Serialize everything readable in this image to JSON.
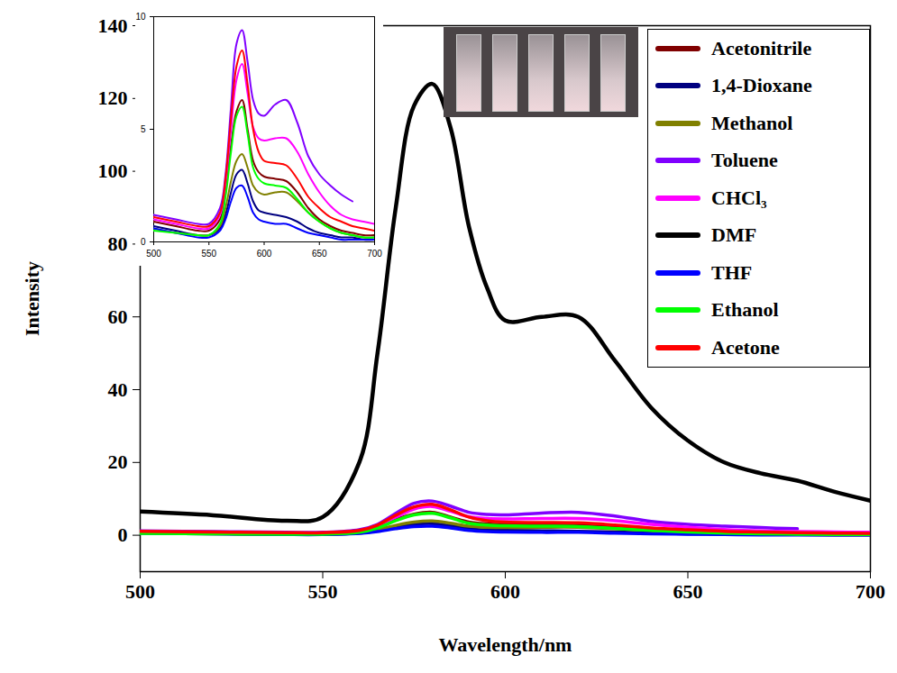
{
  "chart_data": [
    {
      "type": "line",
      "x_label": "Wavelength/nm",
      "y_label": "Intensity",
      "xlim": [
        500,
        700
      ],
      "xticks": [
        500,
        550,
        600,
        650,
        700
      ],
      "ylim": [
        -10,
        140
      ],
      "yticks": [
        0,
        20,
        40,
        60,
        80,
        100,
        120,
        140
      ],
      "grid": false,
      "legend": "top-right",
      "x": [
        500,
        520,
        540,
        550,
        560,
        565,
        570,
        575,
        580,
        585,
        590,
        595,
        600,
        610,
        620,
        630,
        640,
        650,
        660,
        670,
        680,
        690,
        700
      ],
      "series": [
        {
          "name": "Acetonitrile",
          "color": "#800000",
          "values": [
            0.9,
            0.7,
            0.5,
            0.5,
            1,
            2.2,
            4.3,
            5.8,
            6.3,
            5,
            3.6,
            3.1,
            2.9,
            2.8,
            2.7,
            2.2,
            1.5,
            1,
            0.7,
            0.5,
            0.4,
            0.3,
            0.3
          ]
        },
        {
          "name": "1,4-Dioxane",
          "color": "#000080",
          "values": [
            0.7,
            0.5,
            0.3,
            0.3,
            0.6,
            1.2,
            2.2,
            3,
            3.2,
            2.6,
            1.8,
            1.4,
            1.3,
            1.2,
            1.1,
            0.9,
            0.6,
            0.4,
            0.3,
            0.2,
            0.2,
            0.1,
            0.1
          ]
        },
        {
          "name": "Methanol",
          "color": "#808000",
          "values": [
            0.6,
            0.4,
            0.3,
            0.3,
            0.7,
            1.5,
            2.7,
            3.6,
            3.9,
            3.3,
            2.5,
            2.2,
            2.1,
            2.2,
            2.2,
            1.8,
            1.3,
            0.9,
            0.6,
            0.4,
            0.3,
            0.2,
            0.2
          ]
        },
        {
          "name": "Toluene",
          "color": "#8000ff",
          "values": [
            1.2,
            1,
            0.8,
            0.8,
            1.5,
            3,
            6,
            8.8,
            9.4,
            8,
            6.3,
            5.7,
            5.6,
            6.1,
            6.3,
            5.3,
            3.8,
            3,
            2.5,
            2.1,
            1.8,
            null,
            null
          ]
        },
        {
          "name": "CHCl₃",
          "color": "#ff00ff",
          "values": [
            1,
            0.8,
            0.6,
            0.6,
            1.2,
            2.6,
            5,
            7.2,
            7.9,
            6.6,
            5.1,
            4.6,
            4.5,
            4.6,
            4.6,
            4,
            3,
            2.2,
            1.6,
            1.2,
            1,
            0.9,
            0.8
          ]
        },
        {
          "name": "DMF",
          "color": "#000000",
          "values": [
            6.5,
            5.5,
            4,
            5,
            20,
            50,
            90,
            118,
            124,
            112,
            85,
            68,
            59,
            60,
            60,
            48,
            35,
            26,
            20,
            17,
            15,
            12,
            9.5
          ]
        },
        {
          "name": "THF",
          "color": "#0000ff",
          "values": [
            0.6,
            0.4,
            0.2,
            0.2,
            0.5,
            1,
            1.8,
            2.4,
            2.5,
            2,
            1.3,
            1,
            0.9,
            0.8,
            0.8,
            0.6,
            0.4,
            0.3,
            0.2,
            0.1,
            0.1,
            0.1,
            0.1
          ]
        },
        {
          "name": "Ethanol",
          "color": "#00ff00",
          "values": [
            0.5,
            0.4,
            0.3,
            0.3,
            0.8,
            2,
            4,
            5.6,
            6,
            4.8,
            3.3,
            2.8,
            2.6,
            2.5,
            2.4,
            1.9,
            1.3,
            0.9,
            0.6,
            0.4,
            0.3,
            0.2,
            0.2
          ]
        },
        {
          "name": "Acetone",
          "color": "#ff0000",
          "values": [
            1.1,
            0.9,
            0.7,
            0.7,
            1.3,
            2.8,
            5.5,
            7.8,
            8.5,
            7,
            5,
            4,
            3.6,
            3.5,
            3.4,
            2.8,
            2,
            1.5,
            1.1,
            0.9,
            0.7,
            0.6,
            0.5
          ]
        }
      ]
    },
    {
      "type": "line",
      "xlim": [
        500,
        700
      ],
      "xticks": [
        500,
        550,
        600,
        650,
        700
      ],
      "ylim": [
        0,
        10
      ],
      "yticks": [
        0,
        5,
        10
      ],
      "grid": false,
      "x": [
        500,
        520,
        540,
        550,
        560,
        565,
        570,
        575,
        580,
        585,
        590,
        595,
        600,
        610,
        620,
        630,
        640,
        650,
        660,
        670,
        680,
        690,
        700
      ],
      "series": [
        {
          "name": "Acetonitrile",
          "color": "#800000",
          "values": [
            0.9,
            0.7,
            0.5,
            0.5,
            1,
            2.2,
            4.3,
            5.8,
            6.3,
            5,
            3.6,
            3.1,
            2.9,
            2.8,
            2.7,
            2.2,
            1.5,
            1,
            0.7,
            0.5,
            0.4,
            0.3,
            0.3
          ]
        },
        {
          "name": "1,4-Dioxane",
          "color": "#000080",
          "values": [
            0.7,
            0.5,
            0.3,
            0.3,
            0.6,
            1.2,
            2.2,
            3,
            3.2,
            2.6,
            1.8,
            1.4,
            1.3,
            1.2,
            1.1,
            0.9,
            0.6,
            0.4,
            0.3,
            0.2,
            0.2,
            0.1,
            0.1
          ]
        },
        {
          "name": "Methanol",
          "color": "#808000",
          "values": [
            0.6,
            0.4,
            0.3,
            0.3,
            0.7,
            1.5,
            2.7,
            3.6,
            3.9,
            3.3,
            2.5,
            2.2,
            2.1,
            2.2,
            2.2,
            1.8,
            1.3,
            0.9,
            0.6,
            0.4,
            0.3,
            0.2,
            0.2
          ]
        },
        {
          "name": "Toluene",
          "color": "#8000ff",
          "values": [
            1.2,
            1,
            0.8,
            0.8,
            1.5,
            3,
            6,
            8.8,
            9.4,
            8,
            6.3,
            5.7,
            5.6,
            6.1,
            6.3,
            5.3,
            3.8,
            3,
            2.5,
            2.1,
            1.8,
            null,
            null
          ]
        },
        {
          "name": "CHCl₃",
          "color": "#ff00ff",
          "values": [
            1,
            0.8,
            0.6,
            0.6,
            1.2,
            2.6,
            5,
            7.2,
            7.9,
            6.6,
            5.1,
            4.6,
            4.5,
            4.6,
            4.6,
            4,
            3,
            2.2,
            1.6,
            1.2,
            1,
            0.9,
            0.8
          ]
        },
        {
          "name": "THF",
          "color": "#0000ff",
          "values": [
            0.6,
            0.4,
            0.2,
            0.2,
            0.5,
            1,
            1.8,
            2.4,
            2.5,
            2,
            1.3,
            1,
            0.9,
            0.8,
            0.8,
            0.6,
            0.4,
            0.3,
            0.2,
            0.1,
            0.1,
            0.1,
            0.1
          ]
        },
        {
          "name": "Ethanol",
          "color": "#00ff00",
          "values": [
            0.5,
            0.4,
            0.3,
            0.3,
            0.8,
            2,
            4,
            5.6,
            6,
            4.8,
            3.3,
            2.8,
            2.6,
            2.5,
            2.4,
            1.9,
            1.3,
            0.9,
            0.6,
            0.4,
            0.3,
            0.2,
            0.2
          ]
        },
        {
          "name": "Acetone",
          "color": "#ff0000",
          "values": [
            1.1,
            0.9,
            0.7,
            0.7,
            1.3,
            2.8,
            5.5,
            7.8,
            8.5,
            7,
            5,
            4,
            3.6,
            3.5,
            3.4,
            2.8,
            2,
            1.5,
            1.1,
            0.9,
            0.7,
            0.6,
            0.5
          ]
        }
      ]
    }
  ]
}
